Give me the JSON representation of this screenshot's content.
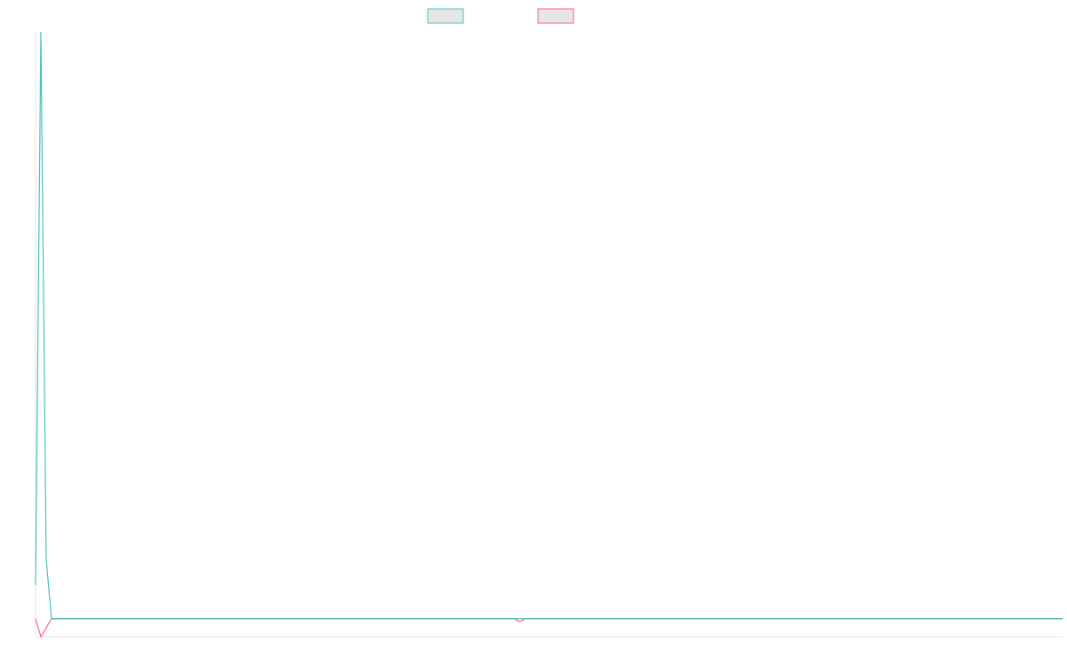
{
  "chart_data": {
    "type": "line",
    "title": "",
    "xlabel": "",
    "ylabel": "",
    "legend_position": "top-center",
    "grid": false,
    "xlim": [
      0,
      193
    ],
    "ylim": [
      -3.5,
      114
    ],
    "series": [
      {
        "name": "",
        "color": "#4bc0c0",
        "legend_fill": "#e6e6e6",
        "points": [
          [
            0,
            6.5
          ],
          [
            1,
            114
          ],
          [
            2,
            11.5
          ],
          [
            3,
            0
          ],
          [
            90,
            0
          ],
          [
            91,
            0
          ],
          [
            92,
            0
          ],
          [
            193,
            0
          ]
        ]
      },
      {
        "name": "",
        "color": "#ff6384",
        "legend_fill": "#e6e6e6",
        "points": [
          [
            0,
            0
          ],
          [
            1,
            -3.5
          ],
          [
            3,
            0
          ],
          [
            90,
            0
          ],
          [
            91,
            -0.6
          ],
          [
            92,
            0
          ],
          [
            193,
            0
          ]
        ]
      }
    ]
  }
}
